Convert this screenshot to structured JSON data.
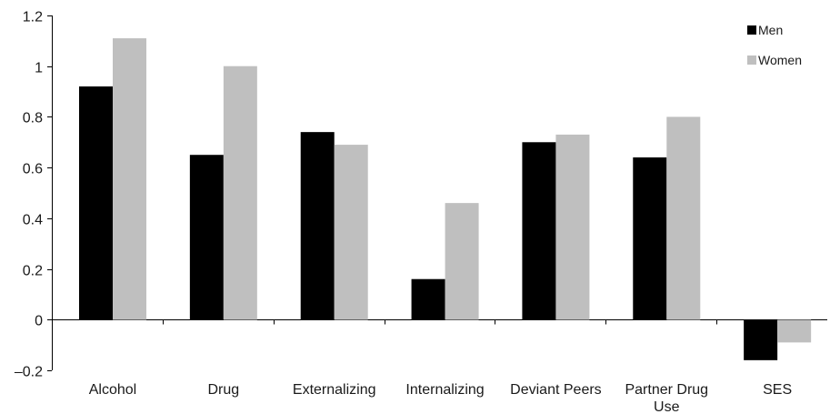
{
  "chart_data": {
    "type": "bar",
    "title": "",
    "xlabel": "",
    "ylabel": "",
    "ylim": [
      -0.2,
      1.2
    ],
    "yticks": [
      "1.2",
      "1",
      "0.8",
      "0.6",
      "0.4",
      "0.2",
      "0",
      "–0.2"
    ],
    "ytick_values": [
      1.2,
      1.0,
      0.8,
      0.6,
      0.4,
      0.2,
      0.0,
      -0.2
    ],
    "categories": [
      [
        "Alcohol"
      ],
      [
        "Drug"
      ],
      [
        "Externalizing"
      ],
      [
        "Internalizing"
      ],
      [
        "Deviant Peers"
      ],
      [
        "Partner Drug",
        "Use"
      ],
      [
        "SES"
      ]
    ],
    "series": [
      {
        "name": "Men",
        "color": "#000000",
        "values": [
          0.92,
          0.65,
          0.74,
          0.16,
          0.7,
          0.64,
          -0.16
        ]
      },
      {
        "name": "Women",
        "color": "#bfbfbf",
        "values": [
          1.11,
          1.0,
          0.69,
          0.46,
          0.73,
          0.8,
          -0.09
        ]
      }
    ],
    "legend_position": "top-right",
    "grid": false
  }
}
